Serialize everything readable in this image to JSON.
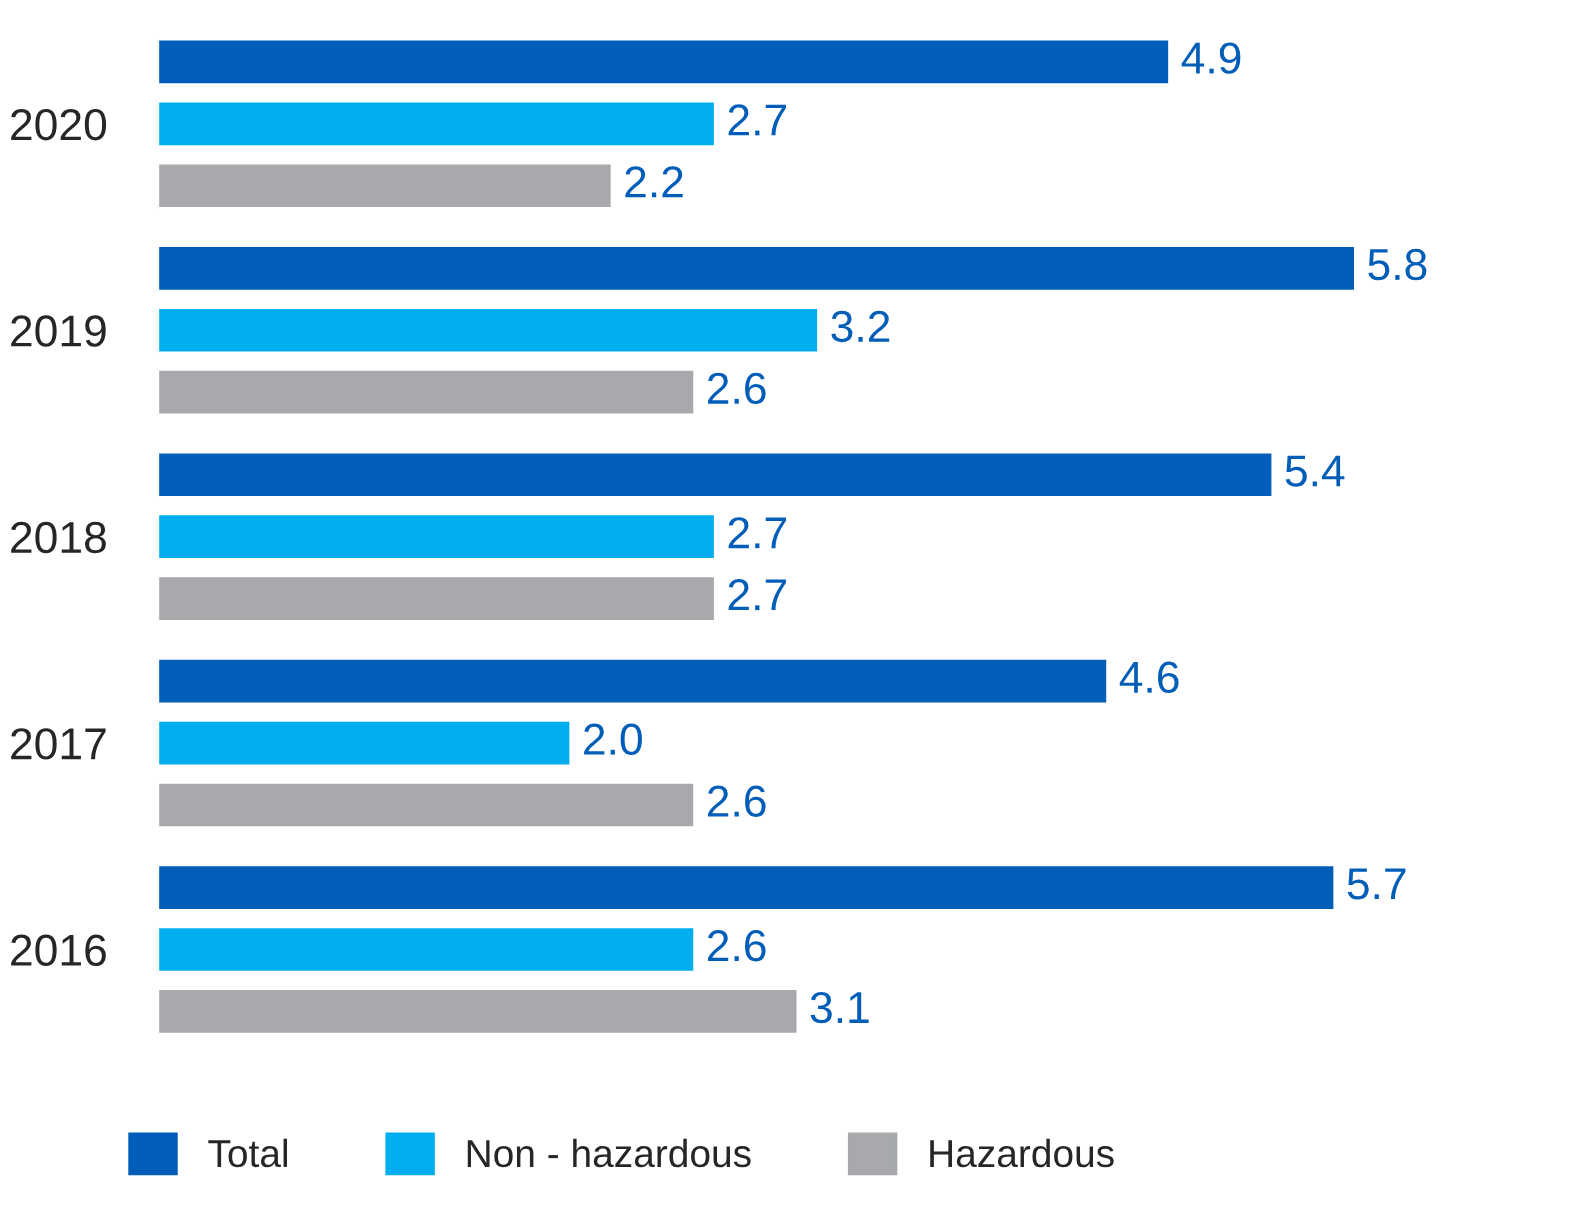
{
  "chart_data": {
    "type": "bar",
    "orientation": "horizontal",
    "categories": [
      "2020",
      "2019",
      "2018",
      "2017",
      "2016"
    ],
    "series": [
      {
        "name": "Total",
        "color": "#005eb8",
        "values": [
          4.9,
          5.8,
          5.4,
          4.6,
          5.7
        ],
        "value_labels": [
          "4.9",
          "5.8",
          "5.4",
          "4.6",
          "5.7"
        ]
      },
      {
        "name": "Non - hazardous",
        "color": "#00aeef",
        "values": [
          2.7,
          3.2,
          2.7,
          2.0,
          2.6
        ],
        "value_labels": [
          "2.7",
          "3.2",
          "2.7",
          "2.0",
          "2.6"
        ]
      },
      {
        "name": "Hazardous",
        "color": "#a7a9ac",
        "values": [
          2.2,
          2.6,
          2.7,
          2.6,
          3.1
        ],
        "value_labels": [
          "2.2",
          "2.6",
          "2.7",
          "2.6",
          "3.1"
        ]
      }
    ],
    "legend": "bottom",
    "grid": false,
    "tick_labels": "y"
  }
}
